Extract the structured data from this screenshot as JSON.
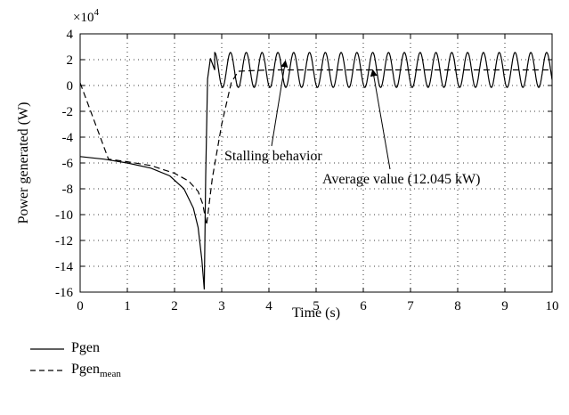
{
  "chart_data": {
    "type": "line",
    "title": "",
    "xlabel": "Time (s)",
    "ylabel": "Power generated (W)",
    "y_exponent_label": "×10",
    "y_exponent_power": "4",
    "xlim": [
      0,
      10
    ],
    "ylim": [
      -16,
      4
    ],
    "xticks": [
      "0",
      "1",
      "2",
      "3",
      "4",
      "5",
      "6",
      "7",
      "8",
      "9",
      "10"
    ],
    "yticks": [
      "4",
      "2",
      "0",
      "-2",
      "-4",
      "-6",
      "-8",
      "-10",
      "-12",
      "-14",
      "-16"
    ],
    "grid": true,
    "legend_position": "below",
    "series": [
      {
        "name": "Pgen",
        "style": "solid",
        "x": [
          0,
          0.5,
          1.0,
          1.5,
          1.9,
          2.2,
          2.4,
          2.5,
          2.58,
          2.63,
          2.66,
          2.7,
          2.76,
          2.85,
          3.0
        ],
        "y": [
          -5.5,
          -5.7,
          -6.0,
          -6.4,
          -7.0,
          -8.0,
          -9.5,
          -11.0,
          -13.5,
          -15.8,
          -7.0,
          0.5,
          2.1,
          1.2,
          1.0
        ],
        "oscillation": {
          "from_x": 2.85,
          "to_x": 10,
          "center": 1.2045,
          "amplitude": 1.35,
          "period": 0.335
        }
      },
      {
        "name": "Pgen",
        "subscript": "mean",
        "style": "dashed",
        "x": [
          0,
          0.6,
          1.0,
          1.5,
          2.0,
          2.3,
          2.5,
          2.6,
          2.68,
          2.8,
          3.0,
          3.2,
          3.35,
          4.0,
          5.0,
          6.0,
          7.0,
          8.0,
          9.0,
          10.0
        ],
        "y": [
          0.2,
          -5.7,
          -5.9,
          -6.2,
          -6.8,
          -7.4,
          -8.2,
          -9.2,
          -10.8,
          -7.2,
          -3.0,
          0.2,
          1.1,
          1.2045,
          1.2045,
          1.2045,
          1.2045,
          1.2045,
          1.2045,
          1.2045
        ]
      }
    ],
    "annotations": [
      {
        "text": "Stalling behavior",
        "arrow_to": [
          4.35,
          1.9
        ]
      },
      {
        "text": "Average value (12.045 kW)",
        "arrow_to": [
          6.2,
          1.2
        ]
      }
    ]
  }
}
